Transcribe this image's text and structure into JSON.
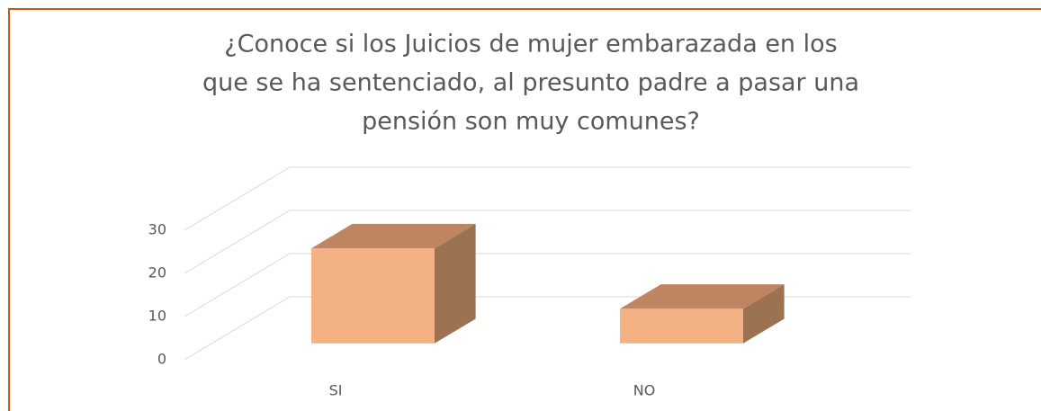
{
  "chart_data": {
    "type": "bar3d",
    "title": [
      "¿Conoce  si  los Juicios de mujer embarazada  en los",
      "que se ha sentenciado, al presunto padre a pasar una",
      "pensión son muy  comunes?"
    ],
    "categories": [
      "SI",
      "NO"
    ],
    "values": [
      22,
      8
    ],
    "color": "#f4b183",
    "ylim": [
      0,
      30
    ],
    "yticks": [
      0,
      10,
      20,
      30
    ],
    "grid": true
  }
}
